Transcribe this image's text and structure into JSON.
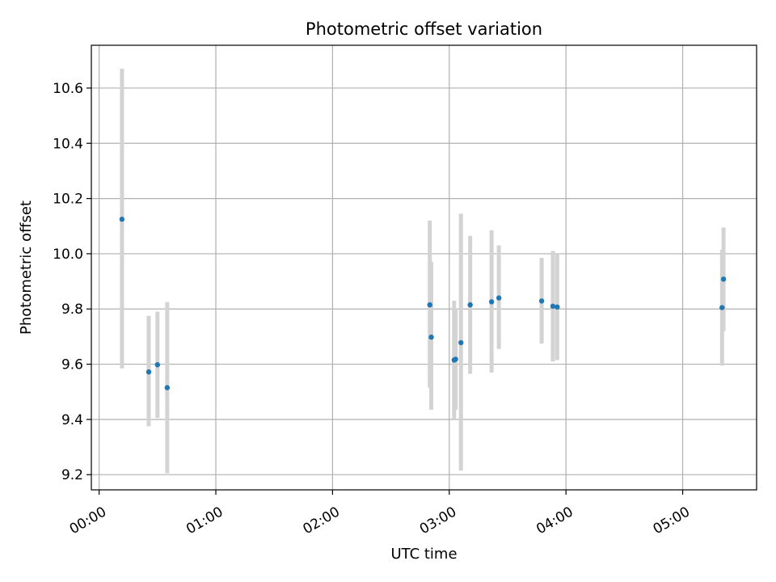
{
  "chart_data": {
    "type": "scatter",
    "title": "Photometric offset variation",
    "xlabel": "UTC time",
    "ylabel": "Photometric offset",
    "x_unit": "UTC time (HH:MM)",
    "xlim": [
      "-00:04",
      "05:38"
    ],
    "ylim": [
      9.145,
      10.755
    ],
    "x_ticks": [
      "00:00",
      "01:00",
      "02:00",
      "03:00",
      "04:00",
      "05:00"
    ],
    "y_ticks": [
      9.2,
      9.4,
      9.6,
      9.8,
      10.0,
      10.2,
      10.4,
      10.6
    ],
    "y_tick_labels": [
      "9.2",
      "9.4",
      "9.6",
      "9.8",
      "10.0",
      "10.2",
      "10.4",
      "10.6"
    ],
    "grid": true,
    "point_color": "#1f77b4",
    "errorbar_color": "#d3d3d3",
    "points": [
      {
        "x": "00:11:45",
        "y": 10.125,
        "ylow": 9.585,
        "yhigh": 10.67
      },
      {
        "x": "00:25:30",
        "y": 9.572,
        "ylow": 9.375,
        "yhigh": 9.775
      },
      {
        "x": "00:30:00",
        "y": 9.598,
        "ylow": 9.405,
        "yhigh": 9.79
      },
      {
        "x": "00:35:00",
        "y": 9.515,
        "ylow": 9.205,
        "yhigh": 9.825
      },
      {
        "x": "02:50:00",
        "y": 9.815,
        "ylow": 9.515,
        "yhigh": 10.12
      },
      {
        "x": "02:50:45",
        "y": 9.698,
        "ylow": 9.435,
        "yhigh": 9.97
      },
      {
        "x": "03:02:30",
        "y": 9.615,
        "ylow": 9.4,
        "yhigh": 9.83
      },
      {
        "x": "03:03:15",
        "y": 9.618,
        "ylow": 9.435,
        "yhigh": 9.8
      },
      {
        "x": "03:06:00",
        "y": 9.678,
        "ylow": 9.215,
        "yhigh": 10.145
      },
      {
        "x": "03:10:45",
        "y": 9.815,
        "ylow": 9.565,
        "yhigh": 10.065
      },
      {
        "x": "03:21:45",
        "y": 9.826,
        "ylow": 9.57,
        "yhigh": 10.085
      },
      {
        "x": "03:25:30",
        "y": 9.84,
        "ylow": 9.655,
        "yhigh": 10.03
      },
      {
        "x": "03:47:30",
        "y": 9.829,
        "ylow": 9.675,
        "yhigh": 9.985
      },
      {
        "x": "03:53:15",
        "y": 9.81,
        "ylow": 9.61,
        "yhigh": 10.01
      },
      {
        "x": "03:55:30",
        "y": 9.807,
        "ylow": 9.615,
        "yhigh": 10.0
      },
      {
        "x": "05:20:15",
        "y": 9.805,
        "ylow": 9.595,
        "yhigh": 10.015
      },
      {
        "x": "05:21:00",
        "y": 9.908,
        "ylow": 9.72,
        "yhigh": 10.095
      }
    ]
  }
}
